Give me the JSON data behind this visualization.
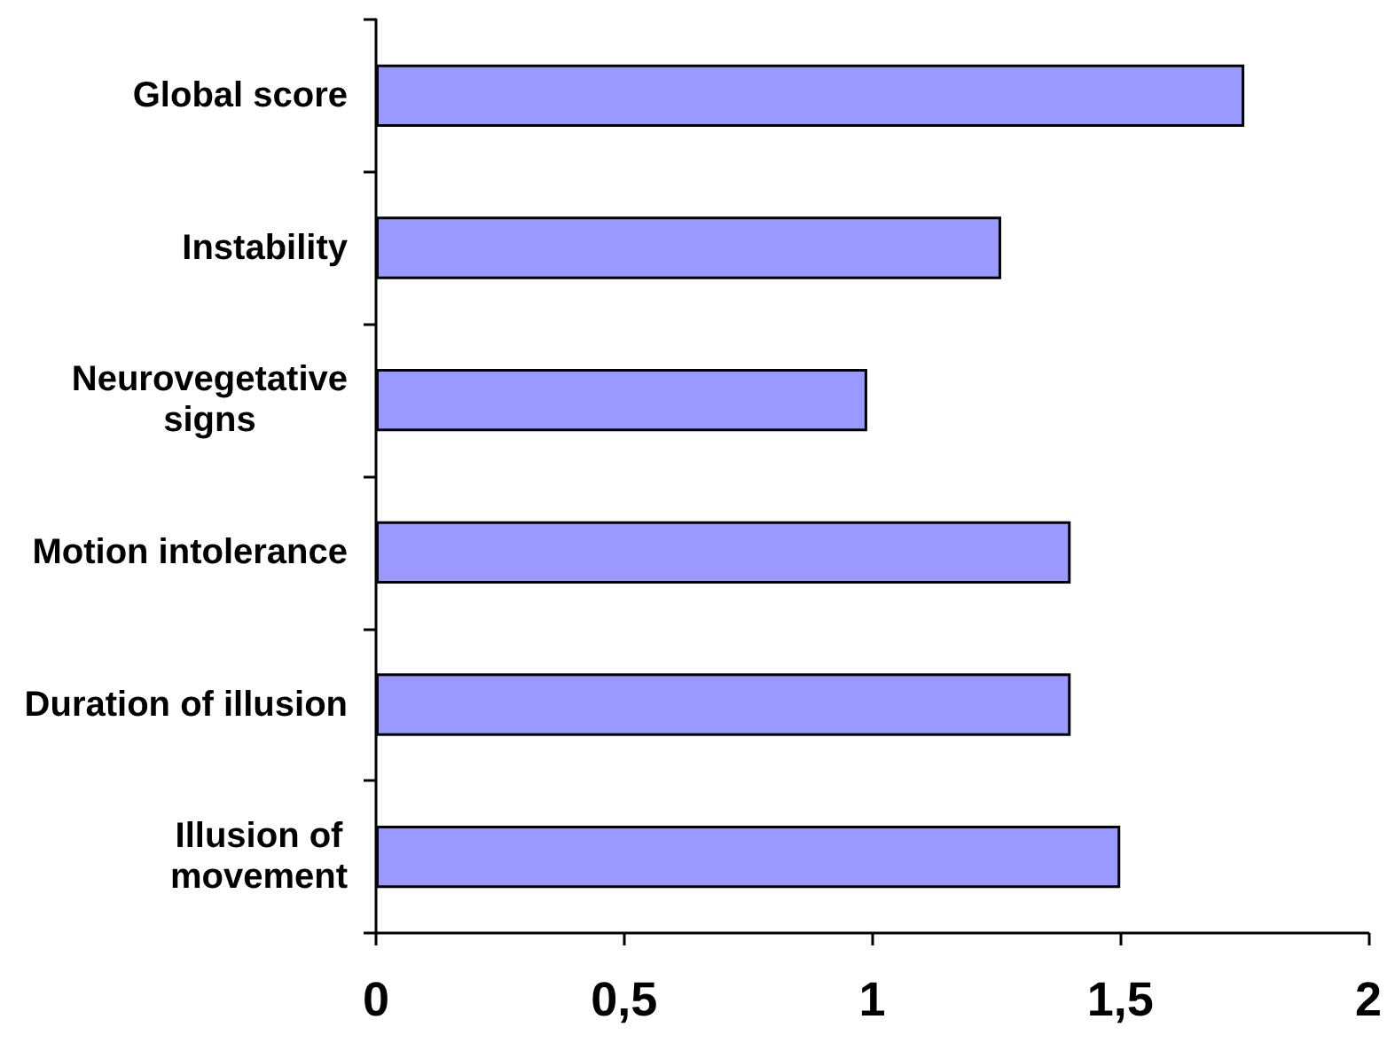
{
  "chart_data": {
    "type": "bar",
    "orientation": "horizontal",
    "categories": [
      "Global score",
      "Instability",
      "Neurovegetative signs",
      "Motion intolerance",
      "Duration of illusion",
      "Illusion of movement"
    ],
    "values": [
      1.75,
      1.26,
      0.99,
      1.4,
      1.4,
      1.5
    ],
    "color": "#9999ff",
    "xlim": [
      0,
      2
    ],
    "xticks": [
      0,
      {
        "value": 0.5,
        "label": "0,5"
      },
      1,
      {
        "value": 1.5,
        "label": "1,5"
      },
      2
    ]
  }
}
